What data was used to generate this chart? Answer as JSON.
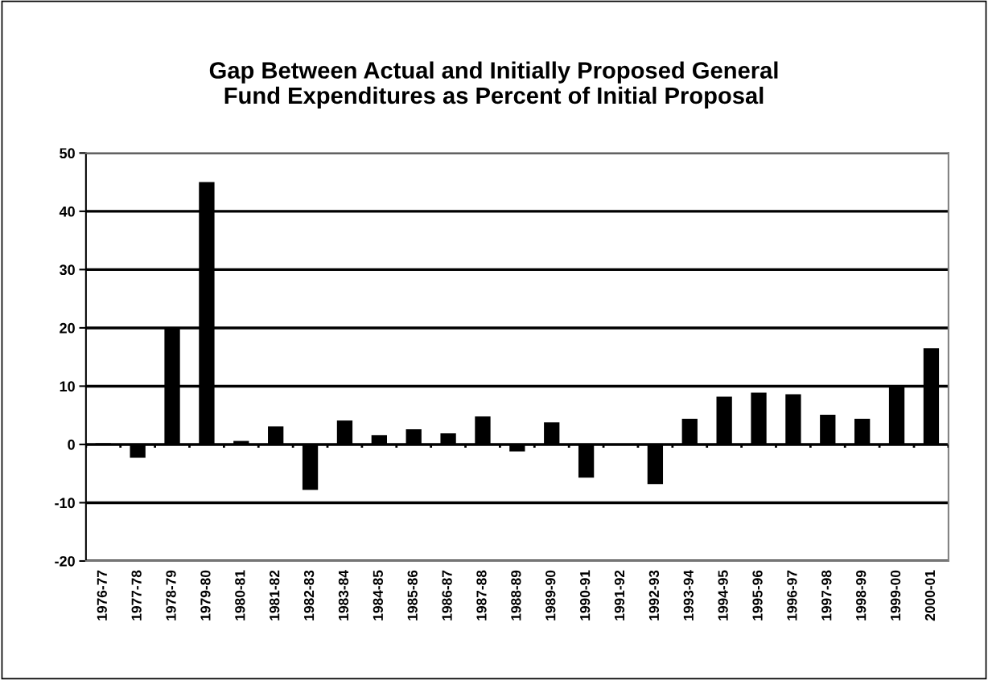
{
  "chart_data": {
    "type": "bar",
    "title": "Gap Between Actual and Initially Proposed General\nFund Expenditures as Percent of Initial Proposal",
    "categories": [
      "1976-77",
      "1977-78",
      "1978-79",
      "1979-80",
      "1980-81",
      "1981-82",
      "1982-83",
      "1983-84",
      "1984-85",
      "1985-86",
      "1986-87",
      "1987-88",
      "1988-89",
      "1989-90",
      "1990-91",
      "1991-92",
      "1992-93",
      "1993-94",
      "1994-95",
      "1995-96",
      "1996-97",
      "1997-98",
      "1998-99",
      "1999-00",
      "2000-01"
    ],
    "values": [
      0.2,
      -2.3,
      20,
      45,
      0.6,
      3.1,
      -7.8,
      4.1,
      1.6,
      2.6,
      1.9,
      4.8,
      -1.2,
      3.8,
      -5.7,
      0,
      -6.8,
      4.4,
      8.2,
      8.9,
      8.6,
      5.1,
      4.4,
      10,
      16.5
    ],
    "color": "#000000",
    "ylim": [
      -20,
      50
    ],
    "yticks": [
      -20,
      -10,
      0,
      10,
      20,
      30,
      40,
      50
    ],
    "grid": "y"
  }
}
